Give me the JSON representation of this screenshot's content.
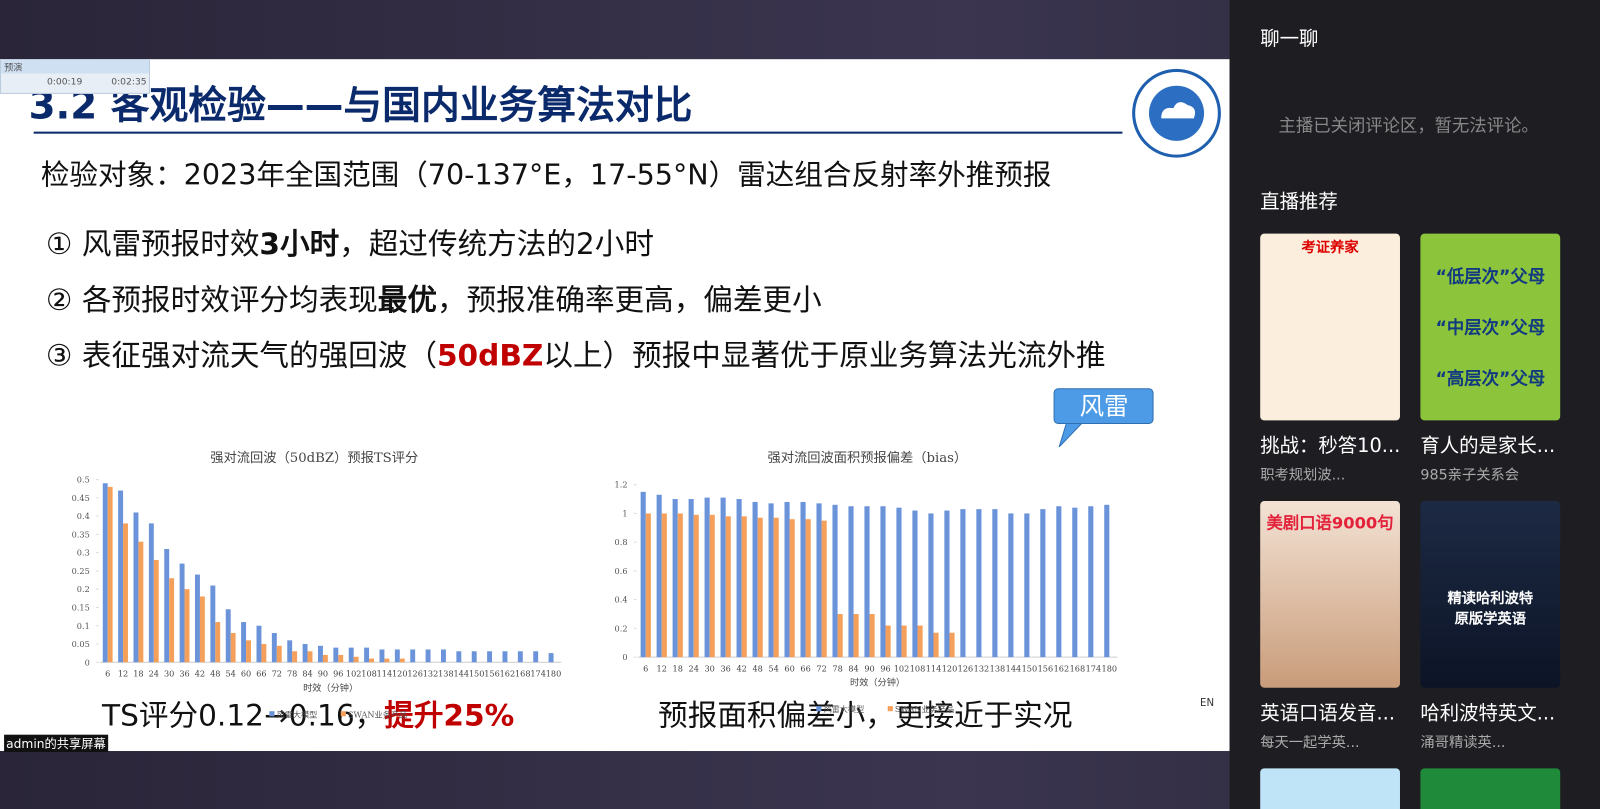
{
  "player": {
    "label": "预演",
    "elapsed": "0:00:19",
    "total": "0:02:35"
  },
  "slide": {
    "title": "3.2 客观检验——与国内业务算法对比",
    "subject": "检验对象：2023年全国范围（70-137°E，17-55°N）雷达组合反射率外推预报",
    "points": [
      {
        "marker": "①",
        "parts": [
          "风雷预报时效",
          "3小时",
          "，超过传统方法的2小时"
        ]
      },
      {
        "marker": "②",
        "parts": [
          "各预报时效评分均表现",
          "最优",
          "，预报准确率更高，偏差更小"
        ]
      },
      {
        "marker": "③",
        "parts": [
          "表征强对流天气的强回波（",
          "50dBZ",
          "以上）预报中显著优于原业务算法光流外推"
        ]
      }
    ],
    "summaries": [
      [
        "TS评分0.12→0.16，",
        "提升25%"
      ],
      [
        "预报面积偏差小，更接近于实况"
      ]
    ],
    "callout": "风雷",
    "lang": "EN",
    "sharer": "admin的共享屏幕"
  },
  "chart_data": [
    {
      "type": "bar",
      "title": "强对流回波（50dBZ）预报TS评分",
      "x_label": "时效（分钟）",
      "categories": [
        "6",
        "12",
        "18",
        "24",
        "30",
        "36",
        "42",
        "48",
        "54",
        "60",
        "66",
        "72",
        "78",
        "84",
        "90",
        "96",
        "102",
        "108",
        "114",
        "120",
        "126",
        "132",
        "138",
        "144",
        "150",
        "156",
        "162",
        "168",
        "174",
        "180"
      ],
      "series": [
        {
          "name": "风雷大模型",
          "color": "#6a93da",
          "values": [
            0.49,
            0.47,
            0.41,
            0.38,
            0.31,
            0.27,
            0.24,
            0.21,
            0.145,
            0.11,
            0.1,
            0.08,
            0.06,
            0.05,
            0.045,
            0.04,
            0.04,
            0.04,
            0.035,
            0.035,
            0.035,
            0.035,
            0.035,
            0.03,
            0.03,
            0.03,
            0.03,
            0.03,
            0.03,
            0.025
          ]
        },
        {
          "name": "SWAN业务产品",
          "color": "#f5a05a",
          "values": [
            0.48,
            0.38,
            0.33,
            0.28,
            0.23,
            0.2,
            0.18,
            0.11,
            0.08,
            0.06,
            0.05,
            0.045,
            0.03,
            0.03,
            0.02,
            0.02,
            0.015,
            0.01,
            0.01,
            0.01,
            null,
            null,
            null,
            null,
            null,
            null,
            null,
            null,
            null,
            null
          ]
        }
      ],
      "ylim": [
        0,
        0.5
      ],
      "yticks": [
        0,
        0.05,
        0.1,
        0.15,
        0.2,
        0.25,
        0.3,
        0.35,
        0.4,
        0.45,
        0.5
      ]
    },
    {
      "type": "bar",
      "title": "强对流回波面积预报偏差（bias）",
      "x_label": "时效（分钟）",
      "categories": [
        "6",
        "12",
        "18",
        "24",
        "30",
        "36",
        "42",
        "48",
        "54",
        "60",
        "66",
        "72",
        "78",
        "84",
        "90",
        "96",
        "102",
        "108",
        "114",
        "120",
        "126",
        "132",
        "138",
        "144",
        "150",
        "156",
        "162",
        "168",
        "174",
        "180"
      ],
      "series": [
        {
          "name": "风雷大模型",
          "color": "#6a93da",
          "values": [
            1.15,
            1.13,
            1.1,
            1.1,
            1.11,
            1.11,
            1.1,
            1.08,
            1.07,
            1.08,
            1.08,
            1.07,
            1.06,
            1.05,
            1.05,
            1.05,
            1.04,
            1.02,
            1.0,
            1.02,
            1.03,
            1.03,
            1.03,
            1.0,
            1.0,
            1.03,
            1.05,
            1.04,
            1.05,
            1.06
          ]
        },
        {
          "name": "SWAN业务产品",
          "color": "#f5a05a",
          "values": [
            1.0,
            1.0,
            1.0,
            0.99,
            0.99,
            0.98,
            0.98,
            0.97,
            0.97,
            0.96,
            0.96,
            0.95,
            0.3,
            0.3,
            0.3,
            0.22,
            0.22,
            0.22,
            0.17,
            0.17,
            null,
            null,
            null,
            null,
            null,
            null,
            null,
            null,
            null,
            null
          ]
        }
      ],
      "ylim": [
        0,
        1.2
      ],
      "yticks": [
        0,
        0.2,
        0.4,
        0.6,
        0.8,
        1,
        1.2
      ]
    }
  ],
  "sidebar": {
    "chat_title": "聊一聊",
    "chat_notice": "主播已关闭评论区，暂无法评论。",
    "rec_title": "直播推荐",
    "cards": [
      {
        "thumb": "考证养家",
        "title": "挑战：秒答10...",
        "owner": "职考规划波..."
      },
      {
        "thumb": "“低层次”父母 “中层次”父母 “高层次”父母",
        "title": "育人的是家长...",
        "owner": "985亲子关系会"
      },
      {
        "thumb": "美剧口语9000句",
        "title": "英语口语发音...",
        "owner": "每天一起学英..."
      },
      {
        "thumb": "精读哈利波特原版学英语",
        "title": "哈利波特英文...",
        "owner": "涌哥精读英..."
      }
    ]
  }
}
